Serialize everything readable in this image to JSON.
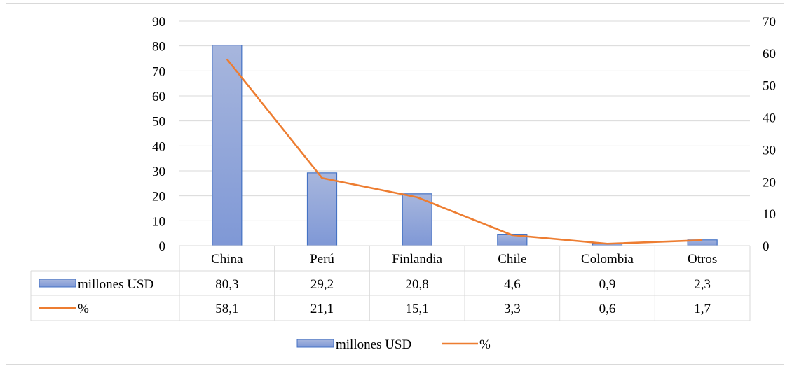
{
  "chart_data": {
    "type": "bar",
    "categories": [
      "China",
      "Perú",
      "Finlandia",
      "Chile",
      "Colombia",
      "Otros"
    ],
    "series": [
      {
        "name": "millones USD",
        "type": "bar",
        "axis": "left",
        "values": [
          80.3,
          29.2,
          20.8,
          4.6,
          0.9,
          2.3
        ],
        "labels": [
          "80,3",
          "29,2",
          "20,8",
          "4,6",
          "0,9",
          "2,3"
        ]
      },
      {
        "name": "%",
        "type": "line",
        "axis": "right",
        "values": [
          58.1,
          21.1,
          15.1,
          3.3,
          0.6,
          1.7
        ],
        "labels": [
          "58,1",
          "21,1",
          "15,1",
          "3,3",
          "0,6",
          "1,7"
        ]
      }
    ],
    "ylim": [
      0,
      90
    ],
    "yticks": [
      "0",
      "10",
      "20",
      "30",
      "40",
      "50",
      "60",
      "70",
      "80",
      "90"
    ],
    "y2lim": [
      0,
      70
    ],
    "y2ticks": [
      "0",
      "10",
      "20",
      "30",
      "40",
      "50",
      "60",
      "70"
    ],
    "grid": true,
    "legend": "bottom",
    "data_table": true,
    "colors": {
      "bar_fill_top": "#a7b6dd",
      "bar_fill_bottom": "#7f98d6",
      "bar_stroke": "#4472c4",
      "line": "#ed7d31",
      "grid": "#d9d9d9"
    }
  }
}
